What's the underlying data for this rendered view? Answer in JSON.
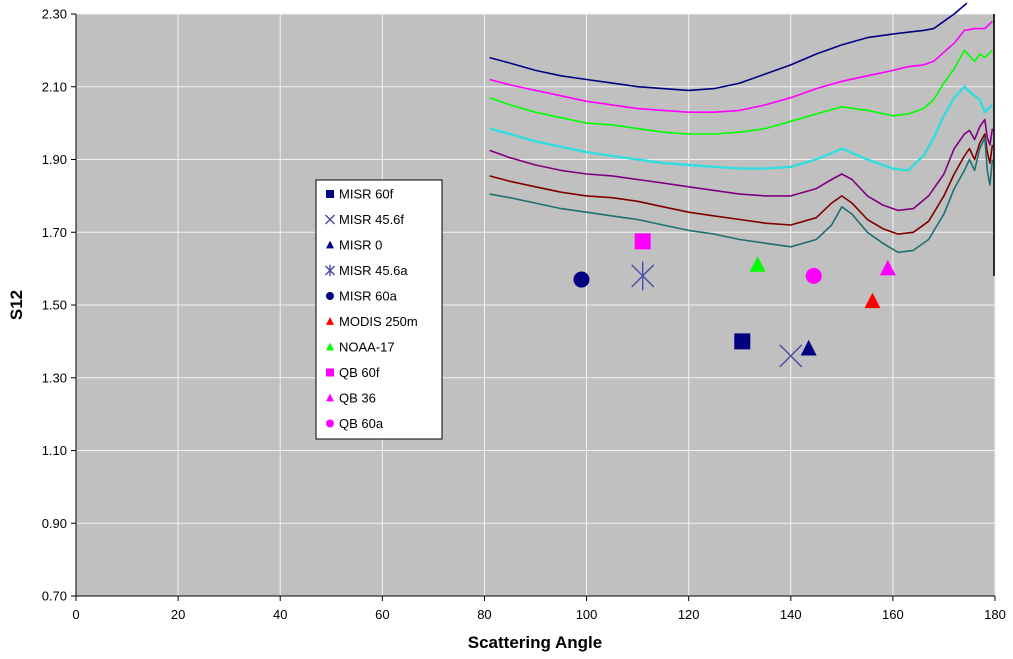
{
  "chart_data": {
    "type": "scatter",
    "title": "",
    "xlabel": "Scattering Angle",
    "ylabel": "S12",
    "xlim": [
      0,
      180
    ],
    "ylim": [
      0.7,
      2.3
    ],
    "x_ticks": [
      "0",
      "20",
      "40",
      "60",
      "80",
      "100",
      "120",
      "140",
      "160",
      "180"
    ],
    "y_ticks": [
      "0.70",
      "0.90",
      "1.10",
      "1.30",
      "1.50",
      "1.70",
      "1.90",
      "2.10",
      "2.30"
    ],
    "grid": true,
    "plot_background": "#c0c0c0",
    "legend_position": "left-center",
    "points": [
      {
        "name": "MISR 60f",
        "marker": "square",
        "color": "#000080",
        "x": 130.5,
        "y": 1.4
      },
      {
        "name": "MISR 45.6f",
        "marker": "x",
        "color": "#4b4ba8",
        "x": 140,
        "y": 1.36
      },
      {
        "name": "MISR 0",
        "marker": "triangle",
        "color": "#000080",
        "x": 143.5,
        "y": 1.38
      },
      {
        "name": "MISR 45.6a",
        "marker": "star",
        "color": "#4b4ba8",
        "x": 111,
        "y": 1.58
      },
      {
        "name": "MISR 60a",
        "marker": "circle",
        "color": "#000080",
        "x": 99,
        "y": 1.57
      },
      {
        "name": "MODIS 250m",
        "marker": "triangle",
        "color": "#ff0000",
        "x": 156,
        "y": 1.51
      },
      {
        "name": "NOAA-17",
        "marker": "triangle",
        "color": "#00ff00",
        "x": 133.5,
        "y": 1.61
      },
      {
        "name": "QB 60f",
        "marker": "square",
        "color": "#ff00ff",
        "x": 111,
        "y": 1.675
      },
      {
        "name": "QB 36",
        "marker": "triangle",
        "color": "#ff00ff",
        "x": 159,
        "y": 1.6
      },
      {
        "name": "QB 60a",
        "marker": "circle",
        "color": "#ff00ff",
        "x": 144.5,
        "y": 1.58
      }
    ],
    "curves": [
      {
        "color": "#000080",
        "width": 1.6,
        "x": [
          81,
          85,
          90,
          95,
          100,
          105,
          110,
          115,
          120,
          125,
          130,
          135,
          140,
          145,
          150,
          155,
          160,
          163,
          166,
          168,
          170,
          172,
          174.5
        ],
        "y": [
          2.18,
          2.165,
          2.145,
          2.13,
          2.12,
          2.11,
          2.1,
          2.095,
          2.09,
          2.095,
          2.11,
          2.135,
          2.16,
          2.19,
          2.215,
          2.235,
          2.245,
          2.25,
          2.255,
          2.26,
          2.28,
          2.3,
          2.33
        ]
      },
      {
        "color": "#ff00ff",
        "width": 1.6,
        "x": [
          81,
          85,
          90,
          95,
          100,
          105,
          110,
          115,
          120,
          125,
          130,
          135,
          140,
          145,
          150,
          155,
          160,
          163,
          166,
          168,
          170,
          172,
          174,
          176,
          178,
          179.5
        ],
        "y": [
          2.12,
          2.105,
          2.09,
          2.075,
          2.06,
          2.05,
          2.04,
          2.035,
          2.03,
          2.03,
          2.035,
          2.05,
          2.07,
          2.095,
          2.115,
          2.13,
          2.145,
          2.155,
          2.16,
          2.17,
          2.195,
          2.22,
          2.255,
          2.26,
          2.26,
          2.28
        ]
      },
      {
        "color": "#00ff00",
        "width": 1.6,
        "x": [
          81,
          85,
          90,
          95,
          100,
          105,
          110,
          115,
          120,
          125,
          130,
          135,
          140,
          145,
          150,
          155,
          160,
          163,
          166,
          168,
          170,
          172,
          174,
          176,
          177,
          178,
          179.5
        ],
        "y": [
          2.07,
          2.05,
          2.03,
          2.015,
          2.0,
          1.995,
          1.985,
          1.975,
          1.97,
          1.97,
          1.975,
          1.985,
          2.005,
          2.025,
          2.045,
          2.035,
          2.02,
          2.025,
          2.04,
          2.065,
          2.11,
          2.15,
          2.2,
          2.17,
          2.19,
          2.18,
          2.2
        ]
      },
      {
        "color": "#33dddd",
        "width": 2.4,
        "x": [
          81,
          85,
          90,
          95,
          100,
          105,
          110,
          115,
          120,
          125,
          130,
          135,
          140,
          145,
          150,
          155,
          160,
          163,
          166,
          168,
          170,
          172,
          174,
          175.5,
          177,
          178,
          179.5
        ],
        "y": [
          1.985,
          1.97,
          1.95,
          1.935,
          1.92,
          1.91,
          1.9,
          1.89,
          1.885,
          1.88,
          1.875,
          1.875,
          1.88,
          1.9,
          1.93,
          1.9,
          1.875,
          1.87,
          1.91,
          1.96,
          2.02,
          2.07,
          2.1,
          2.08,
          2.065,
          2.03,
          2.05
        ]
      },
      {
        "color": "#800080",
        "width": 1.6,
        "x": [
          81,
          85,
          90,
          95,
          100,
          105,
          110,
          115,
          120,
          125,
          130,
          135,
          140,
          145,
          148,
          150,
          152,
          155,
          158,
          161,
          164,
          167,
          170,
          172,
          174,
          175,
          176,
          177,
          178,
          178.5,
          179,
          179.5
        ],
        "y": [
          1.925,
          1.905,
          1.885,
          1.87,
          1.86,
          1.855,
          1.845,
          1.835,
          1.825,
          1.815,
          1.805,
          1.8,
          1.8,
          1.82,
          1.845,
          1.86,
          1.845,
          1.8,
          1.775,
          1.76,
          1.765,
          1.8,
          1.86,
          1.93,
          1.97,
          1.98,
          1.955,
          1.99,
          2.01,
          1.96,
          1.94,
          1.985
        ]
      },
      {
        "color": "#800000",
        "width": 1.6,
        "x": [
          81,
          85,
          90,
          95,
          100,
          105,
          110,
          115,
          120,
          125,
          130,
          135,
          140,
          145,
          148,
          150,
          152,
          155,
          158,
          161,
          164,
          167,
          170,
          172,
          174,
          175,
          176,
          177,
          178,
          178.5,
          179,
          179.5
        ],
        "y": [
          1.855,
          1.84,
          1.825,
          1.81,
          1.8,
          1.795,
          1.785,
          1.77,
          1.755,
          1.745,
          1.735,
          1.725,
          1.72,
          1.74,
          1.78,
          1.8,
          1.78,
          1.735,
          1.71,
          1.695,
          1.7,
          1.73,
          1.8,
          1.86,
          1.91,
          1.93,
          1.9,
          1.945,
          1.97,
          1.92,
          1.89,
          1.94
        ]
      },
      {
        "color": "#207070",
        "width": 1.6,
        "x": [
          81,
          85,
          90,
          95,
          100,
          105,
          110,
          115,
          120,
          125,
          130,
          135,
          140,
          145,
          148,
          150,
          152,
          155,
          158,
          161,
          164,
          167,
          170,
          172,
          174,
          175,
          176,
          177,
          178,
          178.5,
          179,
          179.5
        ],
        "y": [
          1.805,
          1.795,
          1.78,
          1.765,
          1.755,
          1.745,
          1.735,
          1.72,
          1.705,
          1.695,
          1.68,
          1.67,
          1.66,
          1.68,
          1.72,
          1.77,
          1.75,
          1.7,
          1.67,
          1.645,
          1.65,
          1.68,
          1.75,
          1.82,
          1.87,
          1.9,
          1.87,
          1.93,
          1.96,
          1.87,
          1.83,
          1.9
        ]
      }
    ],
    "right_edge_line": {
      "color": "#000000",
      "x": 180,
      "y_from": 1.58,
      "y_to": 2.3
    }
  }
}
